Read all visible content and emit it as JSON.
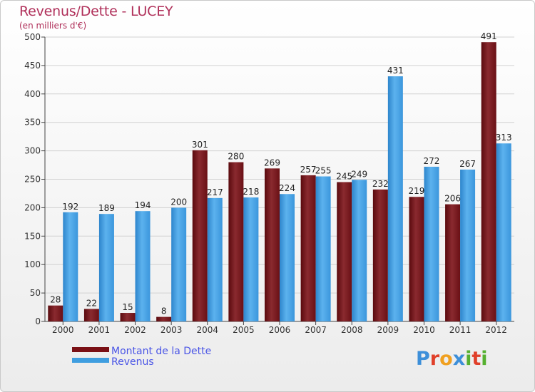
{
  "header": {
    "title": "Revenus/Dette - LUCEY",
    "subtitle": "(en milliers d'€)"
  },
  "legend": {
    "items": [
      {
        "label": "Montant de la Dette",
        "color": "#7a1015"
      },
      {
        "label": "Revenus",
        "color": "#3f9ee0"
      }
    ]
  },
  "logo": {
    "text": "Proxiti",
    "letters": [
      {
        "ch": "P",
        "color": "#3d8fd9"
      },
      {
        "ch": "r",
        "color": "#e0402a"
      },
      {
        "ch": "o",
        "color": "#f0a020"
      },
      {
        "ch": "x",
        "color": "#3d8fd9"
      },
      {
        "ch": "i",
        "color": "#56b030"
      },
      {
        "ch": "t",
        "color": "#e0402a"
      },
      {
        "ch": "i",
        "color": "#56b030"
      }
    ]
  },
  "chart_data": {
    "type": "bar",
    "title": "Revenus/Dette - LUCEY",
    "ylabel": "(en milliers d'€)",
    "xlabel": "",
    "categories": [
      "2000",
      "2001",
      "2002",
      "2003",
      "2004",
      "2005",
      "2006",
      "2007",
      "2008",
      "2009",
      "2010",
      "2011",
      "2012"
    ],
    "series": [
      {
        "name": "Montant de la Dette",
        "color": "#7a1015",
        "values": [
          28,
          22,
          15,
          8,
          301,
          280,
          269,
          257,
          245,
          232,
          219,
          206,
          491
        ]
      },
      {
        "name": "Revenus",
        "color": "#3f9ee0",
        "values": [
          192,
          189,
          194,
          200,
          217,
          218,
          224,
          255,
          249,
          431,
          272,
          267,
          313
        ]
      }
    ],
    "ylim": [
      0,
      500
    ],
    "yticks": [
      0,
      50,
      100,
      150,
      200,
      250,
      300,
      350,
      400,
      450,
      500
    ],
    "grid": true
  }
}
